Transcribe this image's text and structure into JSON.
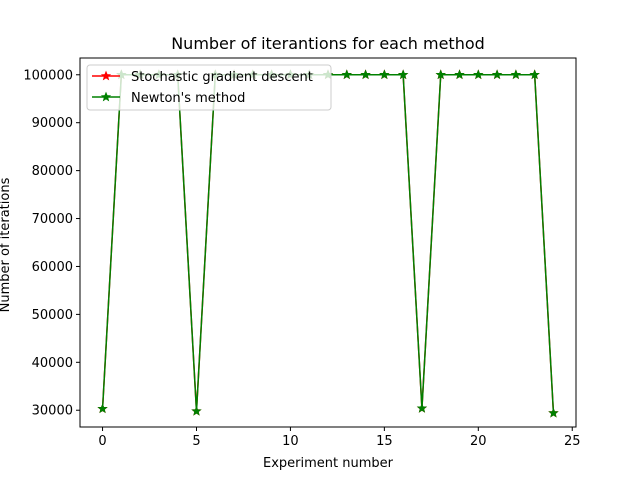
{
  "chart_data": {
    "type": "line",
    "title": "Number of iterantions for each method",
    "xlabel": "Experiment number",
    "ylabel": "Number of iterations",
    "xlim": [
      -1.2,
      25.2
    ],
    "ylim": [
      26500,
      103500
    ],
    "x_ticks": [
      0,
      5,
      10,
      15,
      20,
      25
    ],
    "y_ticks": [
      30000,
      40000,
      50000,
      60000,
      70000,
      80000,
      90000,
      100000
    ],
    "grid": false,
    "legend_position": "top-left",
    "x": [
      0,
      1,
      2,
      3,
      4,
      5,
      6,
      7,
      8,
      9,
      10,
      11,
      12,
      13,
      14,
      15,
      16,
      17,
      18,
      19,
      20,
      21,
      22,
      23,
      24
    ],
    "series": [
      {
        "name": "Stochastic gradient descent",
        "color": "#ff0000",
        "marker": "star",
        "values": [
          30300,
          100000,
          100000,
          100000,
          100000,
          29800,
          100000,
          100000,
          100000,
          100000,
          100000,
          100000,
          100000,
          100000,
          100000,
          100000,
          100000,
          30400,
          100000,
          100000,
          100000,
          100000,
          100000,
          100000,
          29400
        ]
      },
      {
        "name": "Newton's method",
        "color": "#008000",
        "marker": "star",
        "values": [
          30300,
          100000,
          100000,
          100000,
          100000,
          29800,
          100000,
          100000,
          100000,
          100000,
          100000,
          100000,
          100000,
          100000,
          100000,
          100000,
          100000,
          30400,
          100000,
          100000,
          100000,
          100000,
          100000,
          100000,
          29400
        ]
      }
    ]
  }
}
